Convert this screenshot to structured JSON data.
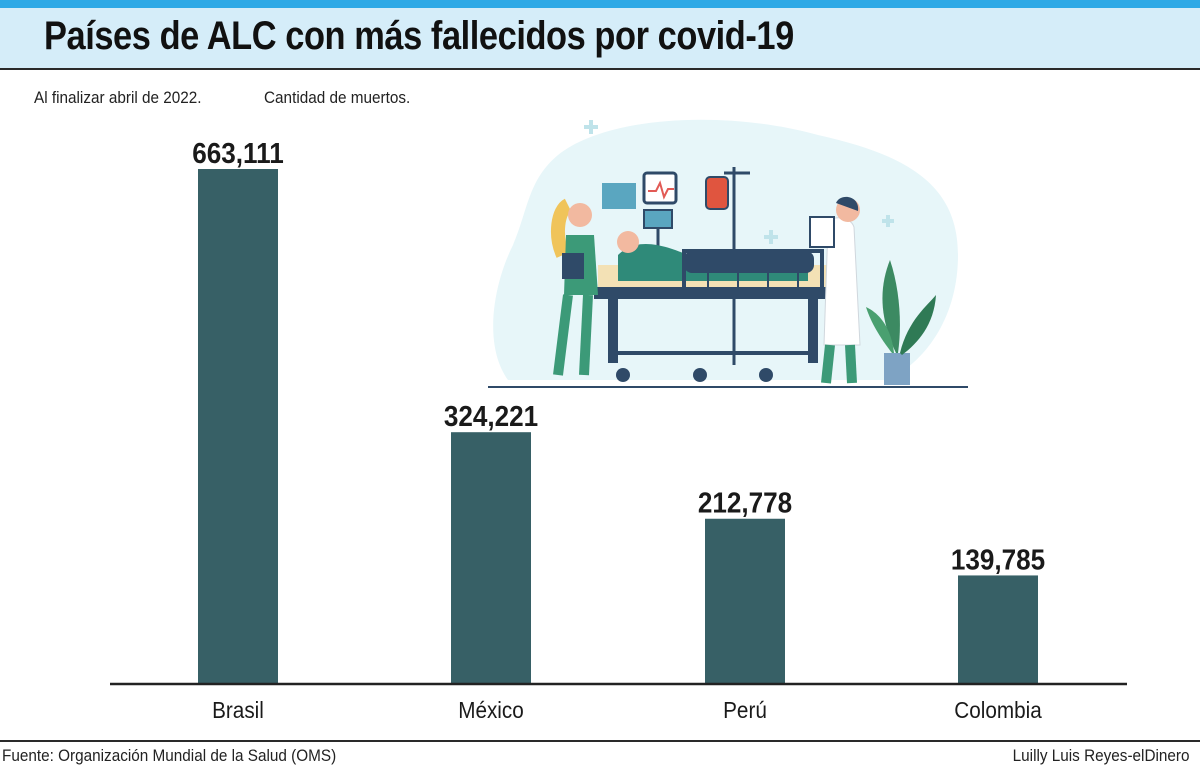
{
  "title": "Países de ALC con más fallecidos por covid-19",
  "subtitle_left": "Al finalizar abril de 2022.",
  "subtitle_right": "Cantidad de muertos.",
  "footer": {
    "source": "Fuente: Organización Mundial de la Salud (OMS)",
    "credit": "Luilly Luis Reyes-elDinero"
  },
  "colors": {
    "bar": "#376066",
    "title_band": "#d5edf9",
    "top_accent": "#2ea9e6"
  },
  "illustration_icon": "hospital-bed-patient-doctor-nurse-illustration",
  "chart_data": {
    "type": "bar",
    "title": "Países de ALC con más fallecidos por covid-19",
    "categories": [
      "Brasil",
      "México",
      "Perú",
      "Colombia"
    ],
    "values": [
      663111,
      324221,
      212778,
      139785
    ],
    "value_labels": [
      "663,111",
      "324,221",
      "212,778",
      "139,785"
    ],
    "ylim": [
      0,
      663111
    ],
    "grid": false,
    "legend": "none"
  }
}
